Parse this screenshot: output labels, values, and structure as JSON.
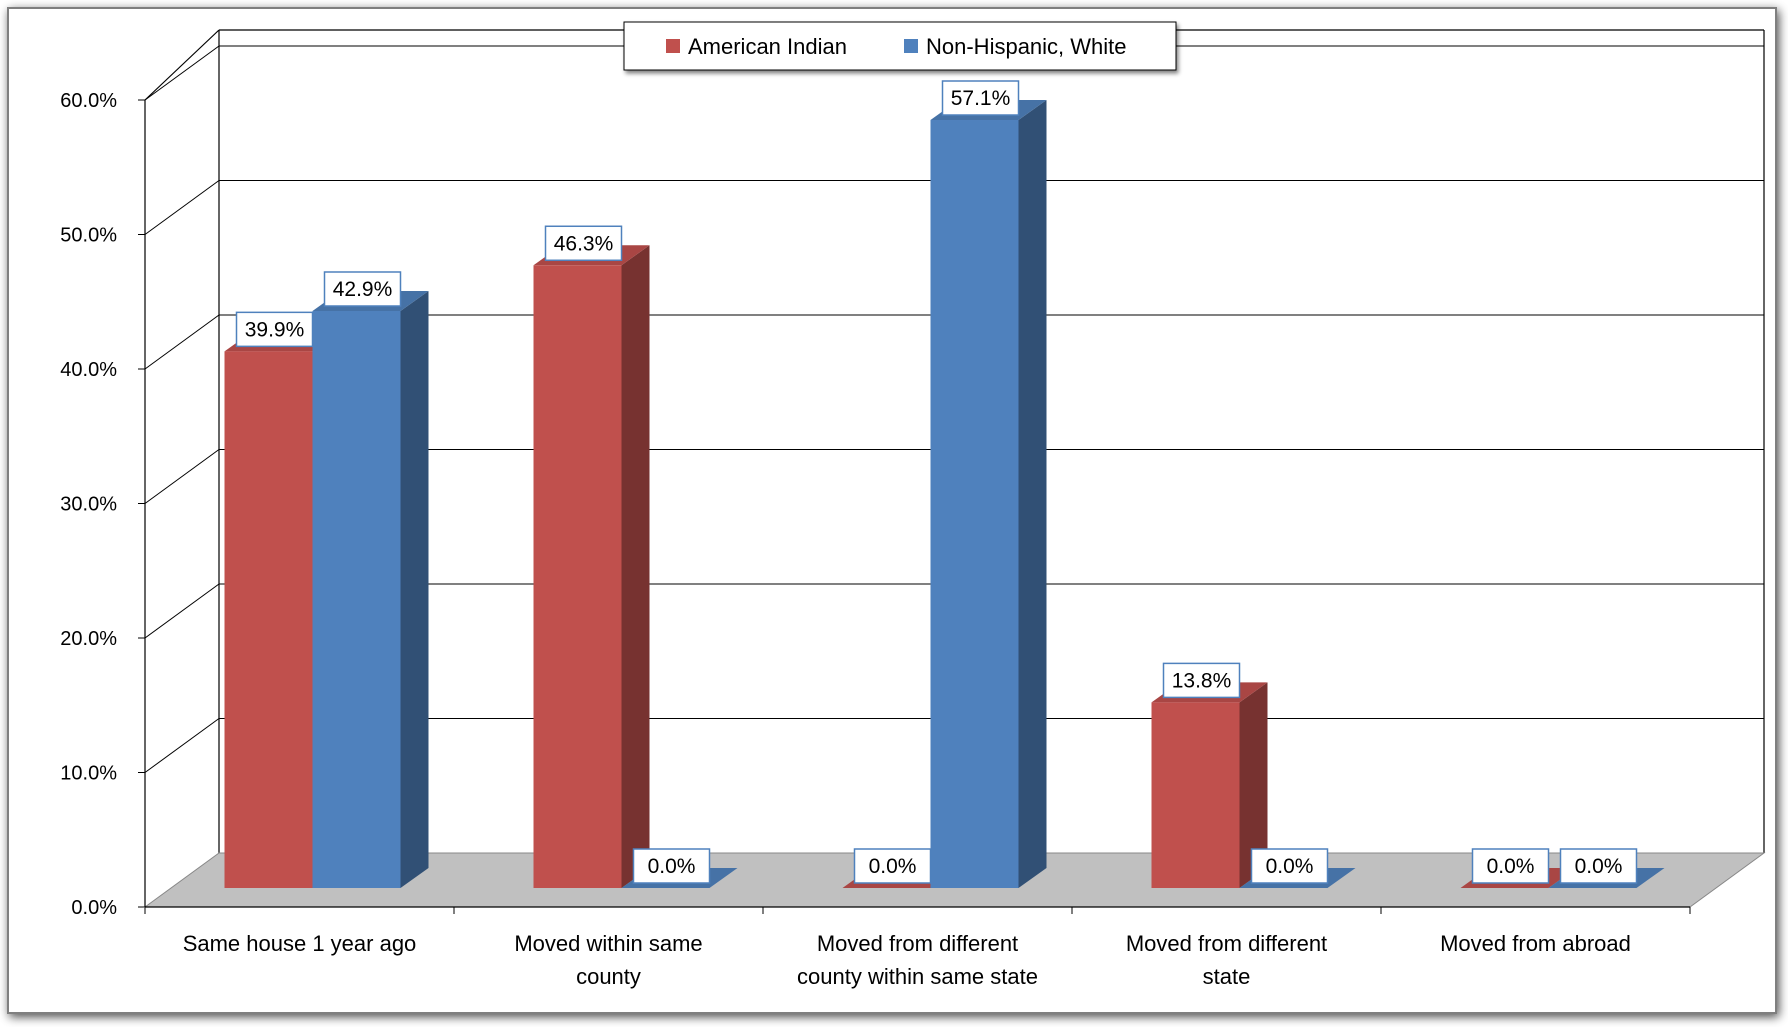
{
  "chart_data": {
    "type": "bar",
    "title": "",
    "xlabel": "",
    "ylabel": "",
    "categories": [
      [
        "Same house 1 year ago"
      ],
      [
        "Moved within same",
        "county"
      ],
      [
        "Moved from different",
        "county within same state"
      ],
      [
        "Moved from different",
        "state"
      ],
      [
        "Moved from abroad"
      ]
    ],
    "series": [
      {
        "name": "American Indian",
        "values": [
          39.9,
          46.3,
          0.0,
          13.8,
          0.0
        ],
        "color": "#C0504D"
      },
      {
        "name": "Non-Hispanic, White",
        "values": [
          42.9,
          0.0,
          57.1,
          0.0,
          0.0
        ],
        "color": "#4F81BD"
      }
    ],
    "data_labels": [
      [
        "39.9%",
        "46.3%",
        "0.0%",
        "13.8%",
        "0.0%"
      ],
      [
        "42.9%",
        "0.0%",
        "57.1%",
        "0.0%",
        "0.0%"
      ]
    ],
    "ylim": [
      0,
      60
    ],
    "yticks": [
      0,
      10,
      20,
      30,
      40,
      50,
      60
    ],
    "ytick_labels": [
      "0.0%",
      "10.0%",
      "20.0%",
      "30.0%",
      "40.0%",
      "50.0%",
      "60.0%"
    ],
    "grid": true,
    "legend_position": "top-center",
    "style": "3d-clustered-column"
  }
}
